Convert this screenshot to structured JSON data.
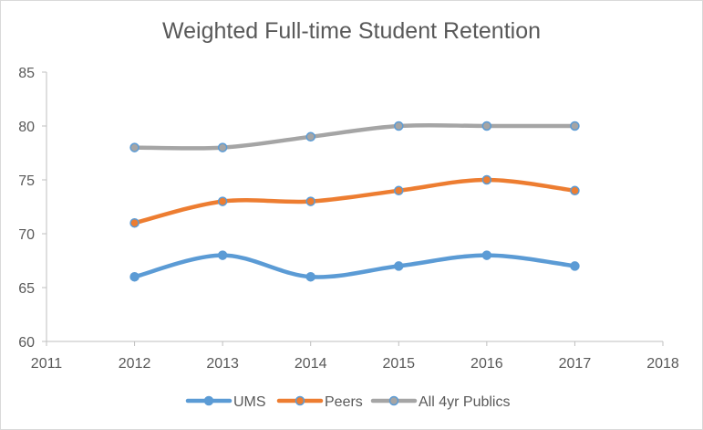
{
  "chart_data": {
    "type": "line",
    "title": "Weighted Full-time Student Retention",
    "xlabel": "",
    "ylabel": "",
    "xlim": [
      2011,
      2018
    ],
    "ylim": [
      60,
      85
    ],
    "xticks": [
      2011,
      2012,
      2013,
      2014,
      2015,
      2016,
      2017,
      2018
    ],
    "yticks": [
      60,
      65,
      70,
      75,
      80,
      85
    ],
    "x": [
      2012,
      2013,
      2014,
      2015,
      2016,
      2017
    ],
    "series": [
      {
        "name": "UMS",
        "values": [
          66,
          68,
          66,
          67,
          68,
          67
        ],
        "color": "#5b9bd5"
      },
      {
        "name": "Peers",
        "values": [
          71,
          73,
          73,
          74,
          75,
          74
        ],
        "color": "#ed7d31"
      },
      {
        "name": "All 4yr Publics",
        "values": [
          78,
          78,
          79,
          80,
          80,
          80
        ],
        "color": "#a5a5a5"
      }
    ],
    "marker_color": "#5b9bd5",
    "grid": false,
    "smooth": true,
    "legend_position": "bottom"
  }
}
